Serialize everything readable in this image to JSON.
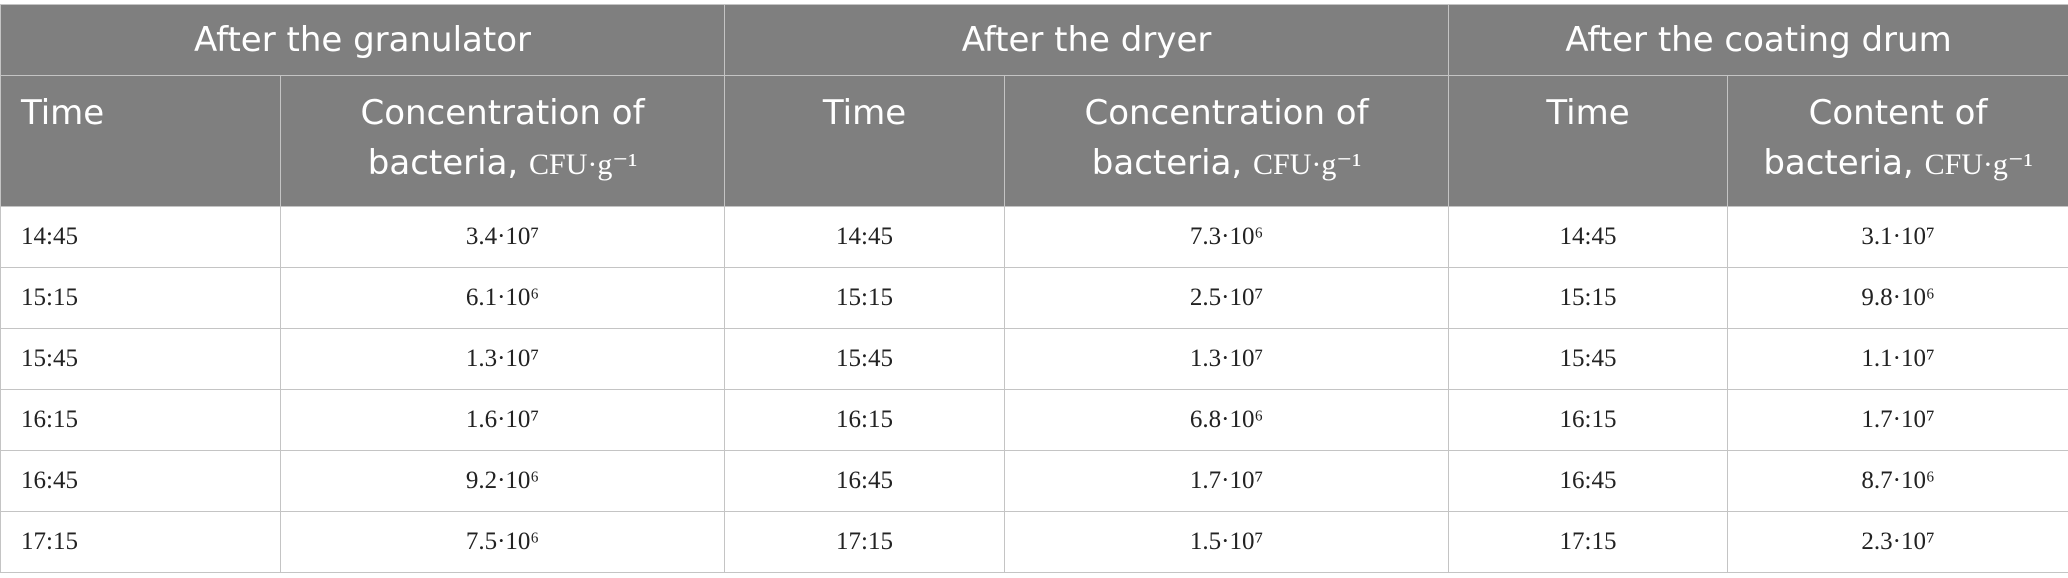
{
  "header": {
    "groups": [
      "After the granulator",
      "After the dryer",
      "After the coating drum"
    ],
    "columns": [
      {
        "label": "Time"
      },
      {
        "label": "Concentration of bacteria,",
        "unit": "CFU·g⁻¹"
      },
      {
        "label": "Time"
      },
      {
        "label": "Concentration of bacteria,",
        "unit": "CFU·g⁻¹"
      },
      {
        "label": "Time"
      },
      {
        "label": "Content of bacteria,",
        "unit": "CFU·g⁻¹"
      }
    ]
  },
  "table": {
    "rows": [
      [
        "14:45",
        "3.4·10⁷",
        "14:45",
        "7.3·10⁶",
        "14:45",
        "3.1·10⁷"
      ],
      [
        "15:15",
        "6.1·10⁶",
        "15:15",
        "2.5·10⁷",
        "15:15",
        "9.8·10⁶"
      ],
      [
        "15:45",
        "1.3·10⁷",
        "15:45",
        "1.3·10⁷",
        "15:45",
        "1.1·10⁷"
      ],
      [
        "16:15",
        "1.6·10⁷",
        "16:15",
        "6.8·10⁶",
        "16:15",
        "1.7·10⁷"
      ],
      [
        "16:45",
        "9.2·10⁶",
        "16:45",
        "1.7·10⁷",
        "16:45",
        "8.7·10⁶"
      ],
      [
        "17:15",
        "7.5·10⁶",
        "17:15",
        "1.5·10⁷",
        "17:15",
        "2.3·10⁷"
      ]
    ]
  }
}
